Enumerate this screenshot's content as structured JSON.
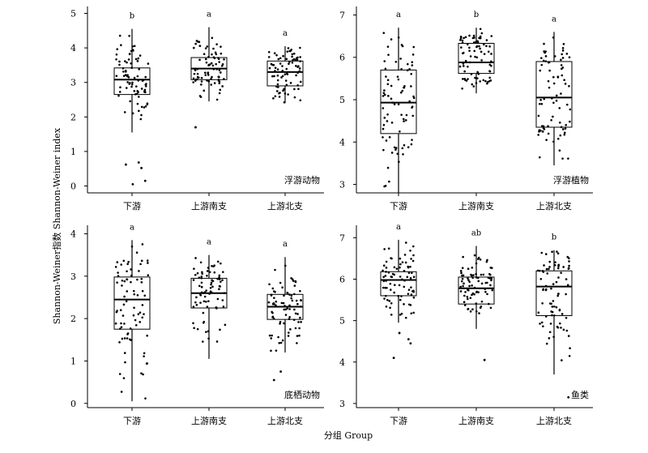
{
  "chart_data": [
    {
      "type": "box",
      "panel_label": "浮游动物",
      "categories": [
        "下游",
        "上游南支",
        "上游北支"
      ],
      "ylim": [
        -0.2,
        5.2
      ],
      "yticks": [
        0,
        1,
        2,
        3,
        4,
        5
      ],
      "boxes": [
        {
          "category": "下游",
          "min": 1.55,
          "q1": 2.65,
          "median": 3.08,
          "q3": 3.42,
          "max": 4.55,
          "letter": "b",
          "outliers": [
            0.62,
            0.52,
            0.68,
            0.15,
            0.05
          ]
        },
        {
          "category": "上游南支",
          "min": 2.45,
          "q1": 3.08,
          "median": 3.4,
          "q3": 3.72,
          "max": 4.6,
          "letter": "a",
          "outliers": [
            1.7
          ]
        },
        {
          "category": "上游北支",
          "min": 2.4,
          "q1": 2.9,
          "median": 3.3,
          "q3": 3.62,
          "max": 4.05,
          "letter": "a",
          "outliers": []
        }
      ]
    },
    {
      "type": "box",
      "panel_label": "浮游植物",
      "categories": [
        "下游",
        "上游南支",
        "上游北支"
      ],
      "ylim": [
        2.8,
        7.2
      ],
      "yticks": [
        3,
        4,
        5,
        6,
        7
      ],
      "boxes": [
        {
          "category": "下游",
          "min": 2.8,
          "q1": 4.2,
          "median": 4.93,
          "q3": 5.7,
          "max": 6.7,
          "letter": "a",
          "outliers": []
        },
        {
          "category": "上游南支",
          "min": 5.15,
          "q1": 5.62,
          "median": 5.88,
          "q3": 6.33,
          "max": 6.7,
          "letter": "b",
          "outliers": []
        },
        {
          "category": "上游北支",
          "min": 3.45,
          "q1": 4.35,
          "median": 5.05,
          "q3": 5.9,
          "max": 6.6,
          "letter": "a",
          "outliers": []
        }
      ]
    },
    {
      "type": "box",
      "panel_label": "底栖动物",
      "categories": [
        "下游",
        "上游南支",
        "上游北支"
      ],
      "ylim": [
        -0.1,
        4.2
      ],
      "yticks": [
        0,
        1,
        2,
        3,
        4
      ],
      "boxes": [
        {
          "category": "下游",
          "min": 0.05,
          "q1": 1.75,
          "median": 2.45,
          "q3": 2.98,
          "max": 3.85,
          "letter": "a",
          "outliers": []
        },
        {
          "category": "上游南支",
          "min": 1.05,
          "q1": 2.25,
          "median": 2.6,
          "q3": 2.95,
          "max": 3.5,
          "letter": "a",
          "outliers": []
        },
        {
          "category": "上游北支",
          "min": 1.2,
          "q1": 1.98,
          "median": 2.28,
          "q3": 2.57,
          "max": 3.45,
          "letter": "a",
          "outliers": [
            0.75,
            0.55
          ]
        }
      ]
    },
    {
      "type": "box",
      "panel_label": "鱼类",
      "categories": [
        "下游",
        "上游南支",
        "上游北支"
      ],
      "ylim": [
        2.9,
        7.3
      ],
      "yticks": [
        3,
        4,
        5,
        6,
        7
      ],
      "boxes": [
        {
          "category": "下游",
          "min": 4.95,
          "q1": 5.6,
          "median": 5.98,
          "q3": 6.18,
          "max": 6.95,
          "letter": "a",
          "outliers": [
            4.7,
            4.55,
            4.45,
            4.1
          ]
        },
        {
          "category": "上游南支",
          "min": 4.8,
          "q1": 5.4,
          "median": 5.78,
          "q3": 6.05,
          "max": 6.8,
          "letter": "ab",
          "outliers": [
            4.05
          ]
        },
        {
          "category": "上游北支",
          "min": 3.7,
          "q1": 5.12,
          "median": 5.82,
          "q3": 6.2,
          "max": 6.7,
          "letter": "b",
          "outliers": [
            3.15
          ]
        }
      ]
    }
  ],
  "axes": {
    "ylabel": "Shannon-Weiner指数 Shannon-Weiner index",
    "xlabel": "分组 Group"
  }
}
